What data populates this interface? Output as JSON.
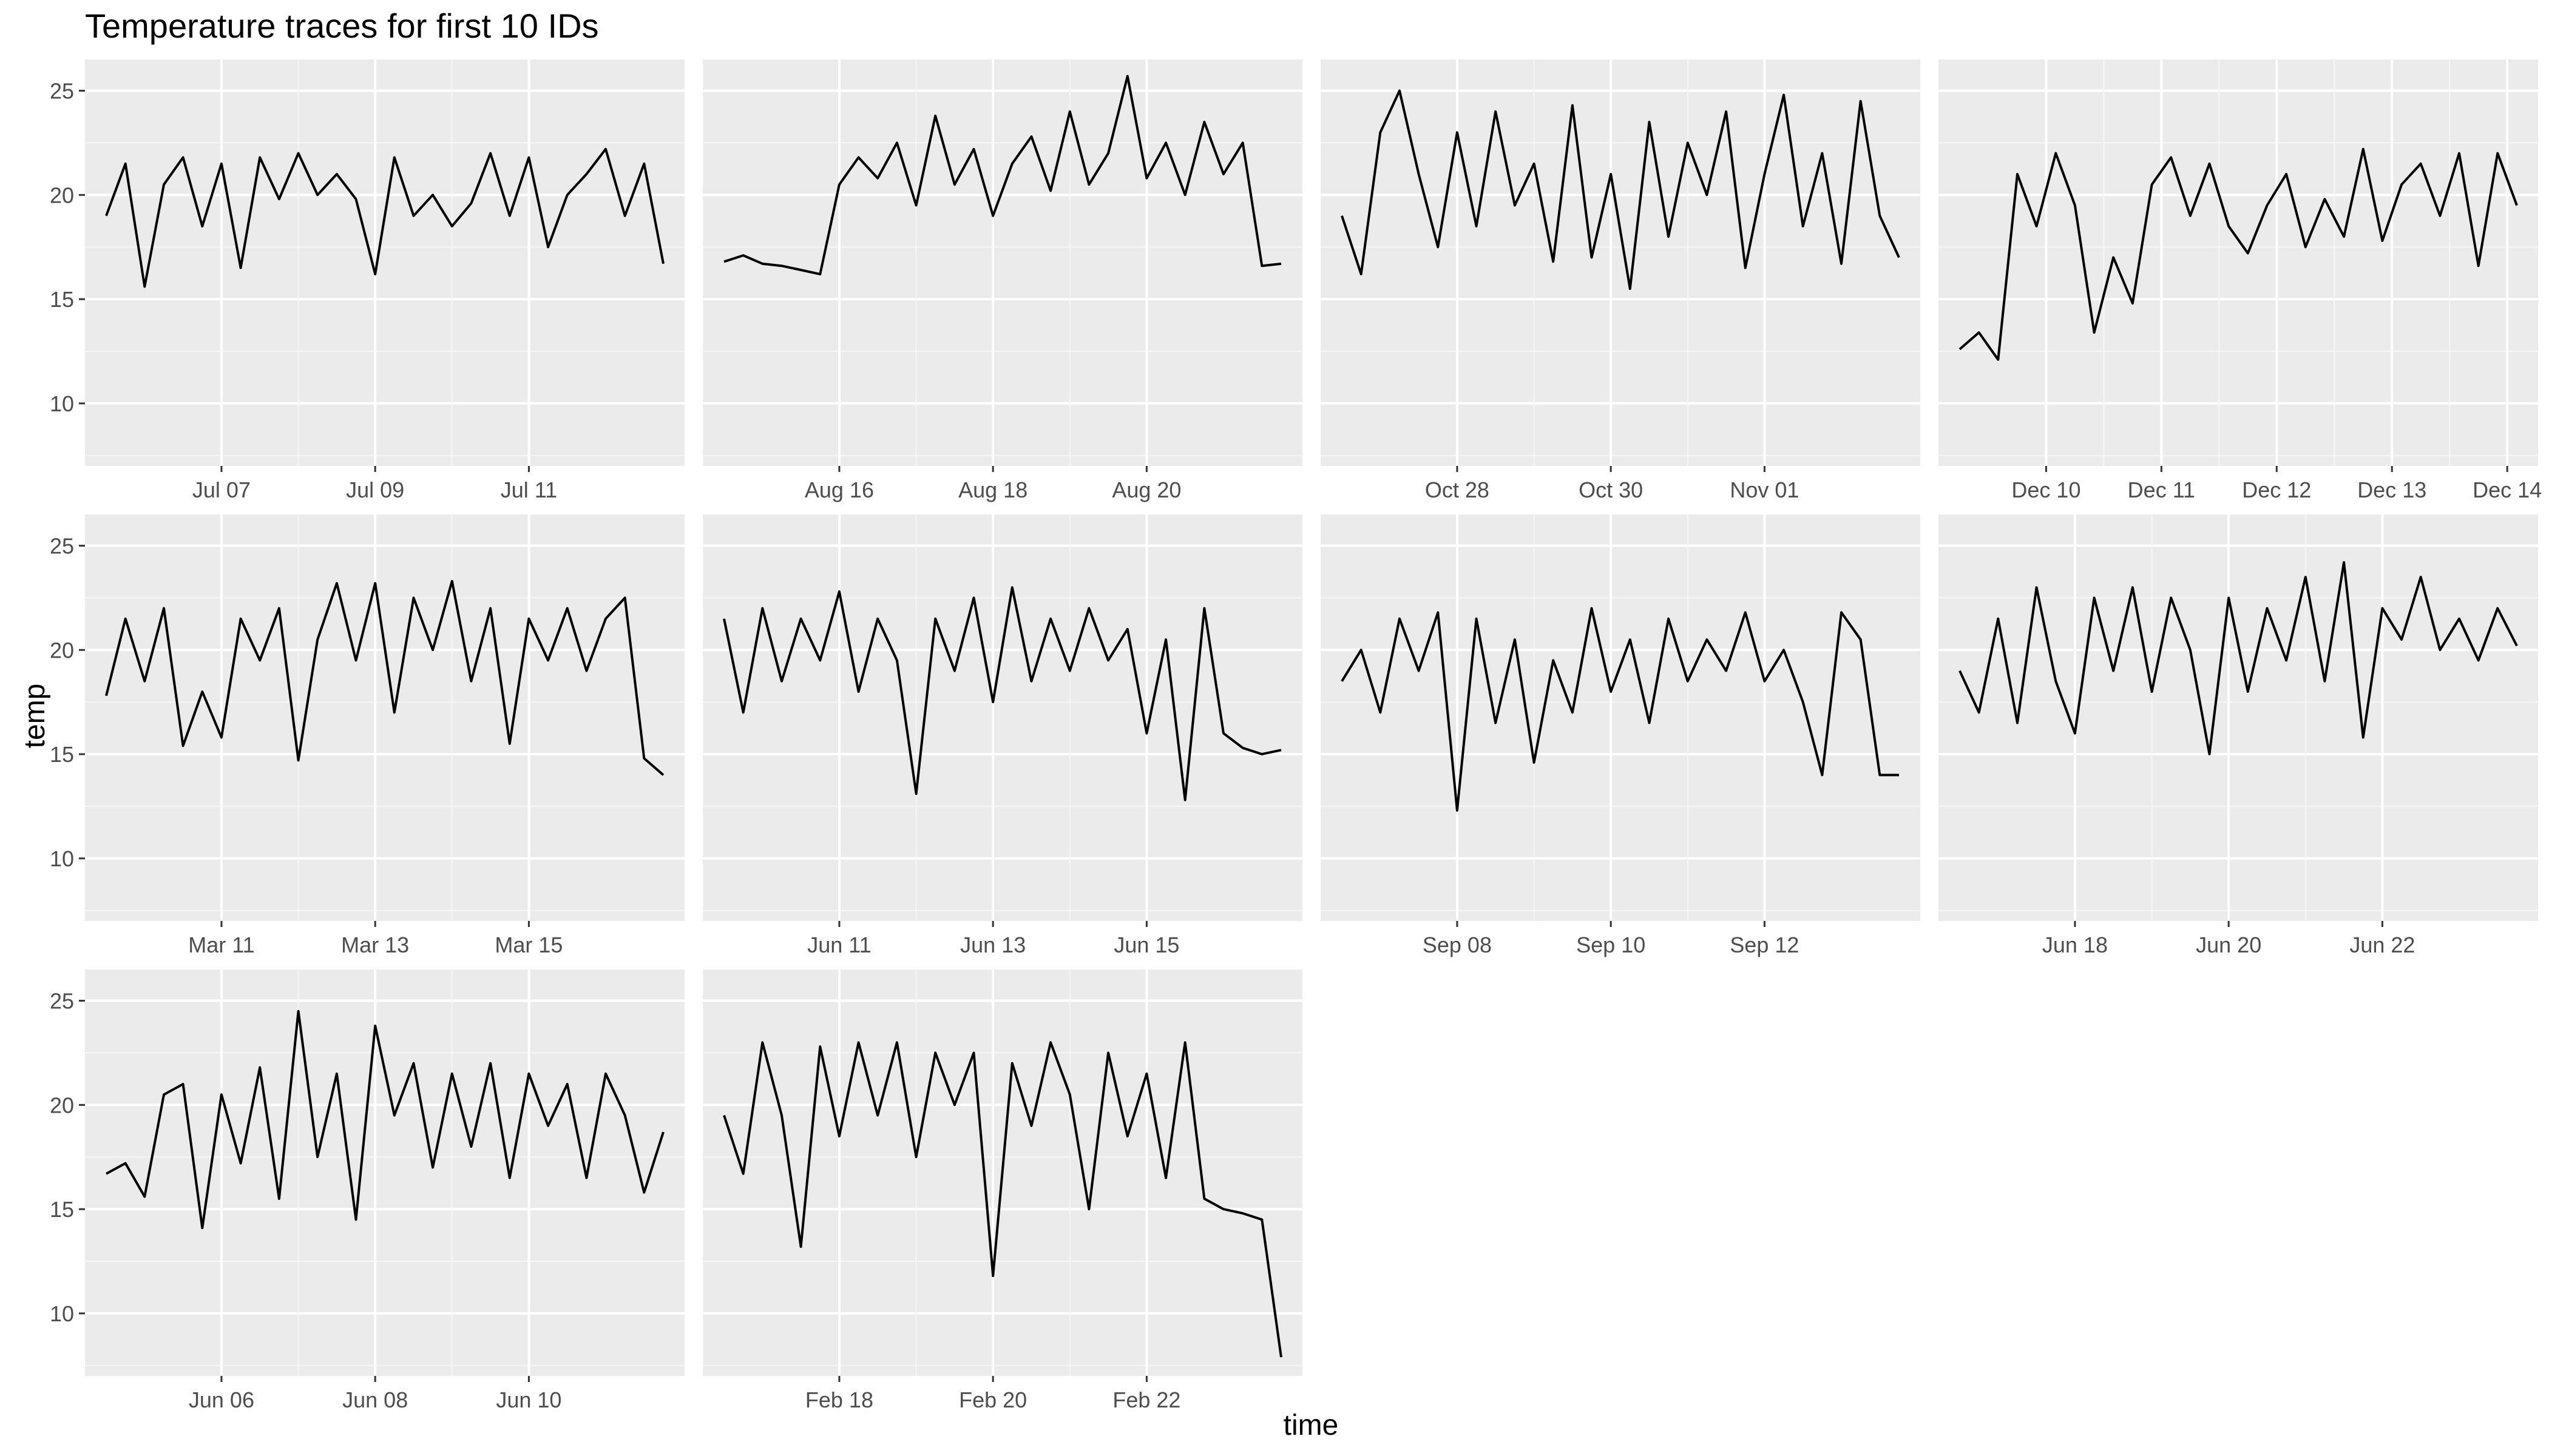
{
  "chart_data": {
    "type": "line",
    "title": "Temperature traces for first 10 IDs",
    "xlabel": "time",
    "ylabel": "temp",
    "ylim": [
      7.0,
      26.5
    ],
    "yticks": [
      10,
      15,
      20,
      25
    ],
    "grid": true,
    "facets": [
      {
        "xticks": [
          "Jul 07",
          "Jul 09",
          "Jul 11"
        ],
        "x": [
          "Jul 05 12:00",
          "Jul 05 18:00",
          "Jul 06 00:00",
          "Jul 06 06:00",
          "Jul 06 12:00",
          "Jul 06 18:00",
          "Jul 07 00:00",
          "Jul 07 06:00",
          "Jul 07 12:00",
          "Jul 07 18:00",
          "Jul 08 00:00",
          "Jul 08 06:00",
          "Jul 08 12:00",
          "Jul 08 18:00",
          "Jul 09 00:00",
          "Jul 09 06:00",
          "Jul 09 12:00",
          "Jul 09 18:00",
          "Jul 10 00:00",
          "Jul 10 06:00",
          "Jul 10 12:00",
          "Jul 10 18:00",
          "Jul 11 00:00",
          "Jul 11 06:00",
          "Jul 11 12:00",
          "Jul 11 18:00",
          "Jul 12 00:00",
          "Jul 12 06:00",
          "Jul 12 12:00",
          "Jul 12 18:00"
        ],
        "values": [
          19.0,
          21.5,
          15.6,
          20.5,
          21.8,
          18.5,
          21.5,
          16.5,
          21.8,
          19.8,
          22.0,
          20.0,
          21.0,
          19.8,
          16.2,
          21.8,
          19.0,
          20.0,
          18.5,
          19.6,
          22.0,
          19.0,
          21.8,
          17.5,
          20.0,
          21.0,
          22.2,
          19.0,
          21.5,
          16.7
        ]
      },
      {
        "xticks": [
          "Aug 16",
          "Aug 18",
          "Aug 20"
        ],
        "x": [
          "Aug 14 12:00",
          "Aug 14 18:00",
          "Aug 15 00:00",
          "Aug 15 06:00",
          "Aug 15 12:00",
          "Aug 15 18:00",
          "Aug 16 00:00",
          "Aug 16 06:00",
          "Aug 16 12:00",
          "Aug 16 18:00",
          "Aug 17 00:00",
          "Aug 17 06:00",
          "Aug 17 12:00",
          "Aug 17 18:00",
          "Aug 18 00:00",
          "Aug 18 06:00",
          "Aug 18 12:00",
          "Aug 18 18:00",
          "Aug 19 00:00",
          "Aug 19 06:00",
          "Aug 19 12:00",
          "Aug 19 18:00",
          "Aug 20 00:00",
          "Aug 20 06:00",
          "Aug 20 12:00",
          "Aug 20 18:00",
          "Aug 21 00:00",
          "Aug 21 06:00",
          "Aug 21 12:00",
          "Aug 21 18:00"
        ],
        "values": [
          16.8,
          17.1,
          16.7,
          16.6,
          16.4,
          16.2,
          20.5,
          21.8,
          20.8,
          22.5,
          19.5,
          23.8,
          20.5,
          22.2,
          19.0,
          21.5,
          22.8,
          20.2,
          24.0,
          20.5,
          22.0,
          25.7,
          20.8,
          22.5,
          20.0,
          23.5,
          21.0,
          22.5,
          16.6,
          16.7
        ]
      },
      {
        "xticks": [
          "Oct 28",
          "Oct 30",
          "Nov 01"
        ],
        "x": [
          "Oct 26 12:00",
          "Oct 26 18:00",
          "Oct 27 00:00",
          "Oct 27 06:00",
          "Oct 27 12:00",
          "Oct 27 18:00",
          "Oct 28 00:00",
          "Oct 28 06:00",
          "Oct 28 12:00",
          "Oct 28 18:00",
          "Oct 29 00:00",
          "Oct 29 06:00",
          "Oct 29 12:00",
          "Oct 29 18:00",
          "Oct 30 00:00",
          "Oct 30 06:00",
          "Oct 30 12:00",
          "Oct 30 18:00",
          "Oct 31 00:00",
          "Oct 31 06:00",
          "Oct 31 12:00",
          "Oct 31 18:00",
          "Nov 01 00:00",
          "Nov 01 06:00",
          "Nov 01 12:00",
          "Nov 01 18:00",
          "Nov 02 00:00",
          "Nov 02 06:00",
          "Nov 02 12:00",
          "Nov 02 18:00"
        ],
        "values": [
          19.0,
          16.2,
          23.0,
          25.0,
          21.0,
          17.5,
          23.0,
          18.5,
          24.0,
          19.5,
          21.5,
          16.8,
          24.3,
          17.0,
          21.0,
          15.5,
          23.5,
          18.0,
          22.5,
          20.0,
          24.0,
          16.5,
          21.0,
          24.8,
          18.5,
          22.0,
          16.7,
          24.5,
          19.0,
          17.0
        ]
      },
      {
        "xticks": [
          "Dec 10",
          "Dec 11",
          "Dec 12",
          "Dec 13",
          "Dec 14"
        ],
        "x": [
          "Dec 09 06:00",
          "Dec 09 10:00",
          "Dec 09 14:00",
          "Dec 09 18:00",
          "Dec 09 22:00",
          "Dec 10 02:00",
          "Dec 10 06:00",
          "Dec 10 10:00",
          "Dec 10 14:00",
          "Dec 10 18:00",
          "Dec 10 22:00",
          "Dec 11 02:00",
          "Dec 11 06:00",
          "Dec 11 10:00",
          "Dec 11 14:00",
          "Dec 11 18:00",
          "Dec 11 22:00",
          "Dec 12 02:00",
          "Dec 12 06:00",
          "Dec 12 10:00",
          "Dec 12 14:00",
          "Dec 12 18:00",
          "Dec 12 22:00",
          "Dec 13 02:00",
          "Dec 13 06:00",
          "Dec 13 10:00",
          "Dec 13 14:00",
          "Dec 13 18:00",
          "Dec 13 22:00",
          "Dec 14 02:00"
        ],
        "values": [
          12.6,
          13.4,
          12.1,
          21.0,
          18.5,
          22.0,
          19.5,
          13.4,
          17.0,
          14.8,
          20.5,
          21.8,
          19.0,
          21.5,
          18.5,
          17.2,
          19.5,
          21.0,
          17.5,
          19.8,
          18.0,
          22.2,
          17.8,
          20.5,
          21.5,
          19.0,
          22.0,
          16.6,
          22.0,
          19.5
        ]
      },
      {
        "xticks": [
          "Mar 11",
          "Mar 13",
          "Mar 15"
        ],
        "x": [
          "Mar 09 12:00",
          "Mar 09 18:00",
          "Mar 10 00:00",
          "Mar 10 06:00",
          "Mar 10 12:00",
          "Mar 10 18:00",
          "Mar 11 00:00",
          "Mar 11 06:00",
          "Mar 11 12:00",
          "Mar 11 18:00",
          "Mar 12 00:00",
          "Mar 12 06:00",
          "Mar 12 12:00",
          "Mar 12 18:00",
          "Mar 13 00:00",
          "Mar 13 06:00",
          "Mar 13 12:00",
          "Mar 13 18:00",
          "Mar 14 00:00",
          "Mar 14 06:00",
          "Mar 14 12:00",
          "Mar 14 18:00",
          "Mar 15 00:00",
          "Mar 15 06:00",
          "Mar 15 12:00",
          "Mar 15 18:00",
          "Mar 16 00:00",
          "Mar 16 06:00",
          "Mar 16 12:00",
          "Mar 16 18:00"
        ],
        "values": [
          17.8,
          21.5,
          18.5,
          22.0,
          15.4,
          18.0,
          15.8,
          21.5,
          19.5,
          22.0,
          14.7,
          20.5,
          23.2,
          19.5,
          23.2,
          17.0,
          22.5,
          20.0,
          23.3,
          18.5,
          22.0,
          15.5,
          21.5,
          19.5,
          22.0,
          19.0,
          21.5,
          22.5,
          14.8,
          14.0
        ]
      },
      {
        "xticks": [
          "Jun 11",
          "Jun 13",
          "Jun 15"
        ],
        "x": [
          "Jun 09 12:00",
          "Jun 09 18:00",
          "Jun 10 00:00",
          "Jun 10 06:00",
          "Jun 10 12:00",
          "Jun 10 18:00",
          "Jun 11 00:00",
          "Jun 11 06:00",
          "Jun 11 12:00",
          "Jun 11 18:00",
          "Jun 12 00:00",
          "Jun 12 06:00",
          "Jun 12 12:00",
          "Jun 12 18:00",
          "Jun 13 00:00",
          "Jun 13 06:00",
          "Jun 13 12:00",
          "Jun 13 18:00",
          "Jun 14 00:00",
          "Jun 14 06:00",
          "Jun 14 12:00",
          "Jun 14 18:00",
          "Jun 15 00:00",
          "Jun 15 06:00",
          "Jun 15 12:00",
          "Jun 15 18:00",
          "Jun 16 00:00",
          "Jun 16 06:00",
          "Jun 16 12:00",
          "Jun 16 18:00"
        ],
        "values": [
          21.5,
          17.0,
          22.0,
          18.5,
          21.5,
          19.5,
          22.8,
          18.0,
          21.5,
          19.5,
          13.1,
          21.5,
          19.0,
          22.5,
          17.5,
          23.0,
          18.5,
          21.5,
          19.0,
          22.0,
          19.5,
          21.0,
          16.0,
          20.5,
          12.8,
          22.0,
          16.0,
          15.3,
          15.0,
          15.2
        ]
      },
      {
        "xticks": [
          "Sep 08",
          "Sep 10",
          "Sep 12"
        ],
        "x": [
          "Sep 06 12:00",
          "Sep 06 18:00",
          "Sep 07 00:00",
          "Sep 07 06:00",
          "Sep 07 12:00",
          "Sep 07 18:00",
          "Sep 08 00:00",
          "Sep 08 06:00",
          "Sep 08 12:00",
          "Sep 08 18:00",
          "Sep 09 00:00",
          "Sep 09 06:00",
          "Sep 09 12:00",
          "Sep 09 18:00",
          "Sep 10 00:00",
          "Sep 10 06:00",
          "Sep 10 12:00",
          "Sep 10 18:00",
          "Sep 11 00:00",
          "Sep 11 06:00",
          "Sep 11 12:00",
          "Sep 11 18:00",
          "Sep 12 00:00",
          "Sep 12 06:00",
          "Sep 12 12:00",
          "Sep 12 18:00",
          "Sep 13 00:00",
          "Sep 13 06:00",
          "Sep 13 12:00",
          "Sep 13 18:00"
        ],
        "values": [
          18.5,
          20.0,
          17.0,
          21.5,
          19.0,
          21.8,
          12.3,
          21.5,
          16.5,
          20.5,
          14.6,
          19.5,
          17.0,
          22.0,
          18.0,
          20.5,
          16.5,
          21.5,
          18.5,
          20.5,
          19.0,
          21.8,
          18.5,
          20.0,
          17.5,
          14.0,
          21.8,
          20.5,
          14.0,
          14.0
        ]
      },
      {
        "xticks": [
          "Jun 18",
          "Jun 20",
          "Jun 22"
        ],
        "x": [
          "Jun 16 12:00",
          "Jun 16 18:00",
          "Jun 17 00:00",
          "Jun 17 06:00",
          "Jun 17 12:00",
          "Jun 17 18:00",
          "Jun 18 00:00",
          "Jun 18 06:00",
          "Jun 18 12:00",
          "Jun 18 18:00",
          "Jun 19 00:00",
          "Jun 19 06:00",
          "Jun 19 12:00",
          "Jun 19 18:00",
          "Jun 20 00:00",
          "Jun 20 06:00",
          "Jun 20 12:00",
          "Jun 20 18:00",
          "Jun 21 00:00",
          "Jun 21 06:00",
          "Jun 21 12:00",
          "Jun 21 18:00",
          "Jun 22 00:00",
          "Jun 22 06:00",
          "Jun 22 12:00",
          "Jun 22 18:00",
          "Jun 23 00:00",
          "Jun 23 06:00",
          "Jun 23 12:00",
          "Jun 23 18:00"
        ],
        "values": [
          19.0,
          17.0,
          21.5,
          16.5,
          23.0,
          18.5,
          16.0,
          22.5,
          19.0,
          23.0,
          18.0,
          22.5,
          20.0,
          15.0,
          22.5,
          18.0,
          22.0,
          19.5,
          23.5,
          18.5,
          24.2,
          15.8,
          22.0,
          20.5,
          23.5,
          20.0,
          21.5,
          19.5,
          22.0,
          20.2
        ]
      },
      {
        "xticks": [
          "Jun 06",
          "Jun 08",
          "Jun 10"
        ],
        "x": [
          "Jun 04 12:00",
          "Jun 04 18:00",
          "Jun 05 00:00",
          "Jun 05 06:00",
          "Jun 05 12:00",
          "Jun 05 18:00",
          "Jun 06 00:00",
          "Jun 06 06:00",
          "Jun 06 12:00",
          "Jun 06 18:00",
          "Jun 07 00:00",
          "Jun 07 06:00",
          "Jun 07 12:00",
          "Jun 07 18:00",
          "Jun 08 00:00",
          "Jun 08 06:00",
          "Jun 08 12:00",
          "Jun 08 18:00",
          "Jun 09 00:00",
          "Jun 09 06:00",
          "Jun 09 12:00",
          "Jun 09 18:00",
          "Jun 10 00:00",
          "Jun 10 06:00",
          "Jun 10 12:00",
          "Jun 10 18:00",
          "Jun 11 00:00",
          "Jun 11 06:00",
          "Jun 11 12:00",
          "Jun 11 18:00"
        ],
        "values": [
          16.7,
          17.2,
          15.6,
          20.5,
          21.0,
          14.1,
          20.5,
          17.2,
          21.8,
          15.5,
          24.5,
          17.5,
          21.5,
          14.5,
          23.8,
          19.5,
          22.0,
          17.0,
          21.5,
          18.0,
          22.0,
          16.5,
          21.5,
          19.0,
          21.0,
          16.5,
          21.5,
          19.5,
          15.8,
          18.7
        ]
      },
      {
        "xticks": [
          "Feb 18",
          "Feb 20",
          "Feb 22"
        ],
        "x": [
          "Feb 16 12:00",
          "Feb 16 18:00",
          "Feb 17 00:00",
          "Feb 17 06:00",
          "Feb 17 12:00",
          "Feb 17 18:00",
          "Feb 18 00:00",
          "Feb 18 06:00",
          "Feb 18 12:00",
          "Feb 18 18:00",
          "Feb 19 00:00",
          "Feb 19 06:00",
          "Feb 19 12:00",
          "Feb 19 18:00",
          "Feb 20 00:00",
          "Feb 20 06:00",
          "Feb 20 12:00",
          "Feb 20 18:00",
          "Feb 21 00:00",
          "Feb 21 06:00",
          "Feb 21 12:00",
          "Feb 21 18:00",
          "Feb 22 00:00",
          "Feb 22 06:00",
          "Feb 22 12:00",
          "Feb 22 18:00",
          "Feb 23 00:00",
          "Feb 23 06:00",
          "Feb 23 12:00",
          "Feb 23 18:00"
        ],
        "values": [
          19.5,
          16.7,
          23.0,
          19.5,
          13.2,
          22.8,
          18.5,
          23.0,
          19.5,
          23.0,
          17.5,
          22.5,
          20.0,
          22.5,
          11.8,
          22.0,
          19.0,
          23.0,
          20.5,
          15.0,
          22.5,
          18.5,
          21.5,
          16.5,
          23.0,
          15.5,
          15.0,
          14.8,
          14.5,
          7.9
        ]
      }
    ]
  }
}
